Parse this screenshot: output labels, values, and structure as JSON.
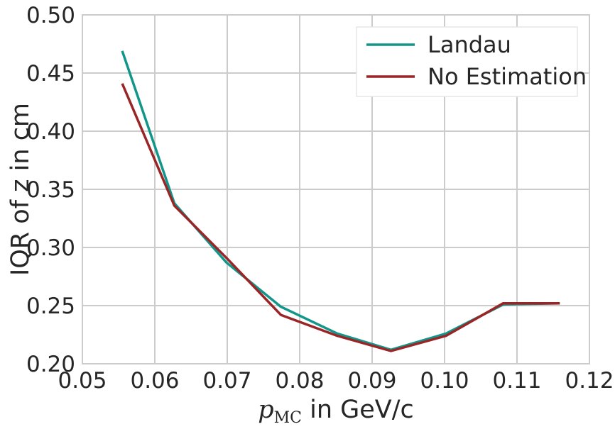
{
  "chart_data": {
    "type": "line",
    "xlabel_math_symbol": "p",
    "xlabel_math_subscript": "MC",
    "xlabel_text": " in GeV/c",
    "ylabel": "IQR of z in cm",
    "xlim": [
      0.05,
      0.12
    ],
    "ylim": [
      0.2,
      0.5
    ],
    "x_ticks": [
      "0.05",
      "0.06",
      "0.07",
      "0.08",
      "0.09",
      "0.10",
      "0.11",
      "0.12"
    ],
    "y_ticks": [
      "0.20",
      "0.25",
      "0.30",
      "0.35",
      "0.40",
      "0.45",
      "0.50"
    ],
    "grid": true,
    "legend_position": "top-right",
    "x": [
      0.0555,
      0.0627,
      0.0699,
      0.0774,
      0.0852,
      0.0926,
      0.1002,
      0.1081,
      0.1159
    ],
    "series": [
      {
        "name": "Landau",
        "color": "#12968a",
        "values": [
          0.469,
          0.338,
          0.287,
          0.249,
          0.226,
          0.212,
          0.226,
          0.251,
          0.252
        ]
      },
      {
        "name": "No Estimation",
        "color": "#9a2527",
        "values": [
          0.441,
          0.336,
          0.291,
          0.242,
          0.224,
          0.211,
          0.224,
          0.252,
          0.252
        ]
      }
    ]
  }
}
